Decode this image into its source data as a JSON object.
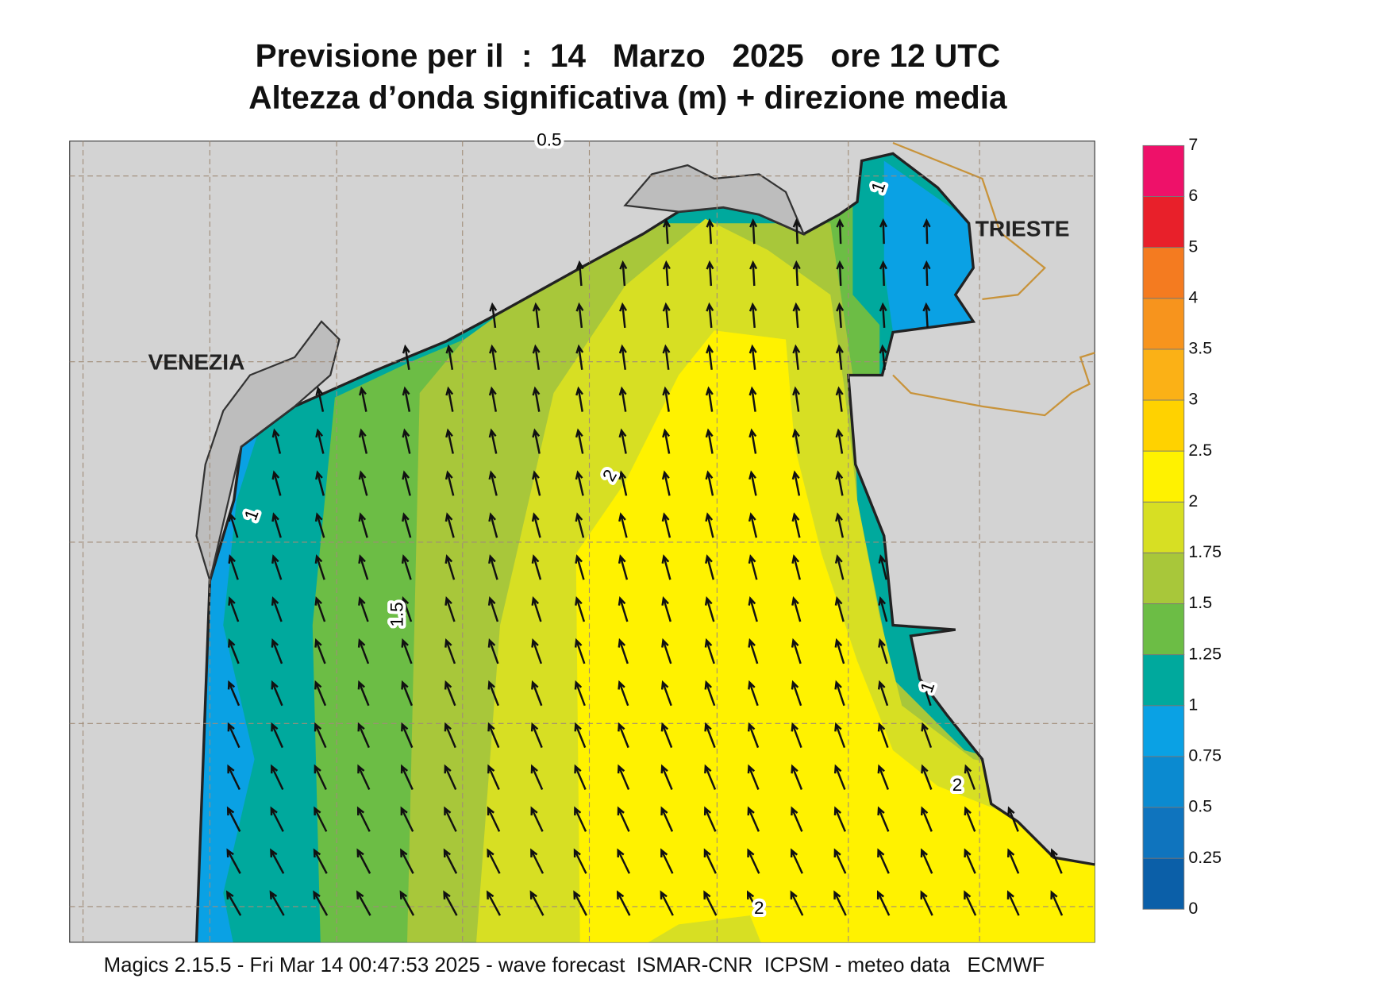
{
  "title": {
    "line1": "Previsione per il  :  14   Marzo   2025   ore 12 UTC",
    "line2": "Altezza d’onda significativa (m) + direzione media"
  },
  "places": [
    "VENEZIA",
    "TRIESTE"
  ],
  "contour_labels": [
    0.5,
    1,
    1,
    1,
    1.5,
    2,
    2,
    2
  ],
  "legend": {
    "levels": [
      0,
      0.25,
      0.5,
      0.75,
      1,
      1.25,
      1.5,
      1.75,
      2,
      2.5,
      3,
      3.5,
      4,
      5,
      6,
      7
    ],
    "colors": [
      "#0b5fa8",
      "#0f74be",
      "#0b8ad0",
      "#0aa1e4",
      "#00a99d",
      "#6cbd45",
      "#a8c73a",
      "#d7df23",
      "#fff200",
      "#ffd200",
      "#fbb116",
      "#f7941d",
      "#f47b20",
      "#e8202a",
      "#ee1169"
    ]
  },
  "footer": "Magics 2.15.5 - Fri Mar 14 00:47:53 2025 - wave forecast  ISMAR-CNR  ICPSM - meteo data   ECMWF"
}
